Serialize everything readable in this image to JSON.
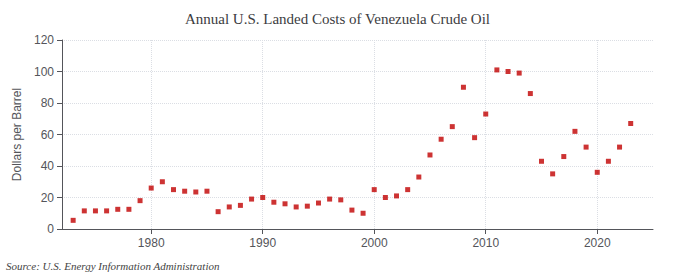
{
  "chart_data": {
    "type": "scatter",
    "title": "Annual U.S. Landed Costs of Venezuela Crude Oil",
    "ylabel": "Dollars per Barrel",
    "annotations": [
      "Source: U.S. Energy Information Administration"
    ],
    "x": [
      1973,
      1974,
      1975,
      1976,
      1977,
      1978,
      1979,
      1980,
      1981,
      1982,
      1983,
      1984,
      1985,
      1986,
      1987,
      1988,
      1989,
      1990,
      1991,
      1992,
      1993,
      1994,
      1995,
      1996,
      1997,
      1998,
      1999,
      2000,
      2001,
      2002,
      2003,
      2004,
      2005,
      2006,
      2007,
      2008,
      2009,
      2010,
      2011,
      2012,
      2013,
      2014,
      2015,
      2016,
      2017,
      2018,
      2019,
      2020,
      2021,
      2022,
      2023
    ],
    "values": [
      5.5,
      11.5,
      11.5,
      11.5,
      12.5,
      12.5,
      18.0,
      26.0,
      30.0,
      25.0,
      24.0,
      23.5,
      24.0,
      11.0,
      14.0,
      15.0,
      19.0,
      20.0,
      17.0,
      16.0,
      14.0,
      14.5,
      16.5,
      19.0,
      18.5,
      12.0,
      10.0,
      25.0,
      20.0,
      21.0,
      25.0,
      33.0,
      47.0,
      57.0,
      65.0,
      90.0,
      58.0,
      73.0,
      101.0,
      100.0,
      99.0,
      86.0,
      43.0,
      35.0,
      46.0,
      62.0,
      52.0,
      36.0,
      43.0,
      52.0,
      67.0
    ],
    "color": "#c00000",
    "marker": "square",
    "xlim": [
      1972,
      2025
    ],
    "xticks": [
      1980,
      1990,
      2000,
      2010,
      2020
    ],
    "ylim": [
      0,
      120
    ],
    "yticks": [
      0,
      20,
      40,
      60,
      80,
      100,
      120
    ],
    "grid": true
  }
}
